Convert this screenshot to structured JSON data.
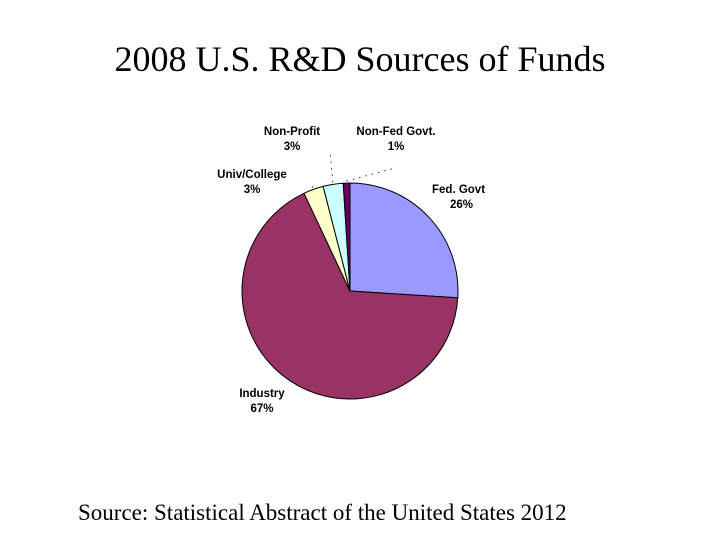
{
  "slide": {
    "title": "2008 U.S. R&D Sources of Funds",
    "source": "Source: Statistical Abstract of the United States 2012"
  },
  "chart_data": {
    "type": "pie",
    "title": "2008 U.S. R&D Sources of Funds",
    "slices": [
      {
        "label": "Fed. Govt",
        "value": 26,
        "value_label": "26%",
        "color": "#9999ff"
      },
      {
        "label": "Industry",
        "value": 67,
        "value_label": "67%",
        "color": "#993366"
      },
      {
        "label": "Univ/College",
        "value": 3,
        "value_label": "3%",
        "color": "#ffffcc"
      },
      {
        "label": "Non-Profit",
        "value": 3,
        "value_label": "3%",
        "color": "#ccffff"
      },
      {
        "label": "Non-Fed Govt.",
        "value": 1,
        "value_label": "1%",
        "color": "#660066"
      }
    ],
    "start_angle_deg": 0,
    "direction": "clockwise",
    "legend": "none"
  }
}
